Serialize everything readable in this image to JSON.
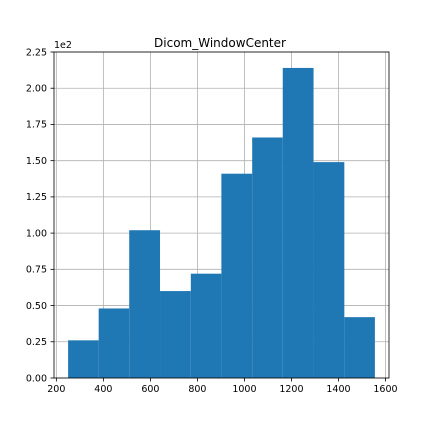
{
  "chart_data": {
    "type": "bar",
    "title": "Dicom_WindowCenter",
    "xlabel": "",
    "ylabel": "",
    "y_scale_label": "1e2",
    "xlim": [
      190,
      1615
    ],
    "ylim": [
      0,
      2.25
    ],
    "x_ticks": [
      200,
      400,
      600,
      800,
      1000,
      1200,
      1400,
      1600
    ],
    "x_tick_labels": [
      "200",
      "400",
      "600",
      "800",
      "1000",
      "1200",
      "1400",
      "1600"
    ],
    "y_ticks": [
      0,
      0.25,
      0.5,
      0.75,
      1.0,
      1.25,
      1.5,
      1.75,
      2.0,
      2.25
    ],
    "y_tick_labels": [
      "0.00",
      "0.25",
      "0.50",
      "0.75",
      "1.00",
      "1.25",
      "1.50",
      "1.75",
      "2.00",
      "2.25"
    ],
    "grid": true,
    "bar_color": "#1f77b4",
    "bins": [
      {
        "start": 250,
        "end": 380,
        "value": 0.26
      },
      {
        "start": 380,
        "end": 510,
        "value": 0.48
      },
      {
        "start": 510,
        "end": 641,
        "value": 1.02
      },
      {
        "start": 641,
        "end": 772,
        "value": 0.6
      },
      {
        "start": 772,
        "end": 902,
        "value": 0.72
      },
      {
        "start": 902,
        "end": 1033,
        "value": 1.41
      },
      {
        "start": 1033,
        "end": 1163,
        "value": 1.66
      },
      {
        "start": 1163,
        "end": 1294,
        "value": 2.14
      },
      {
        "start": 1294,
        "end": 1425,
        "value": 1.49
      },
      {
        "start": 1425,
        "end": 1555,
        "value": 0.42
      }
    ]
  }
}
